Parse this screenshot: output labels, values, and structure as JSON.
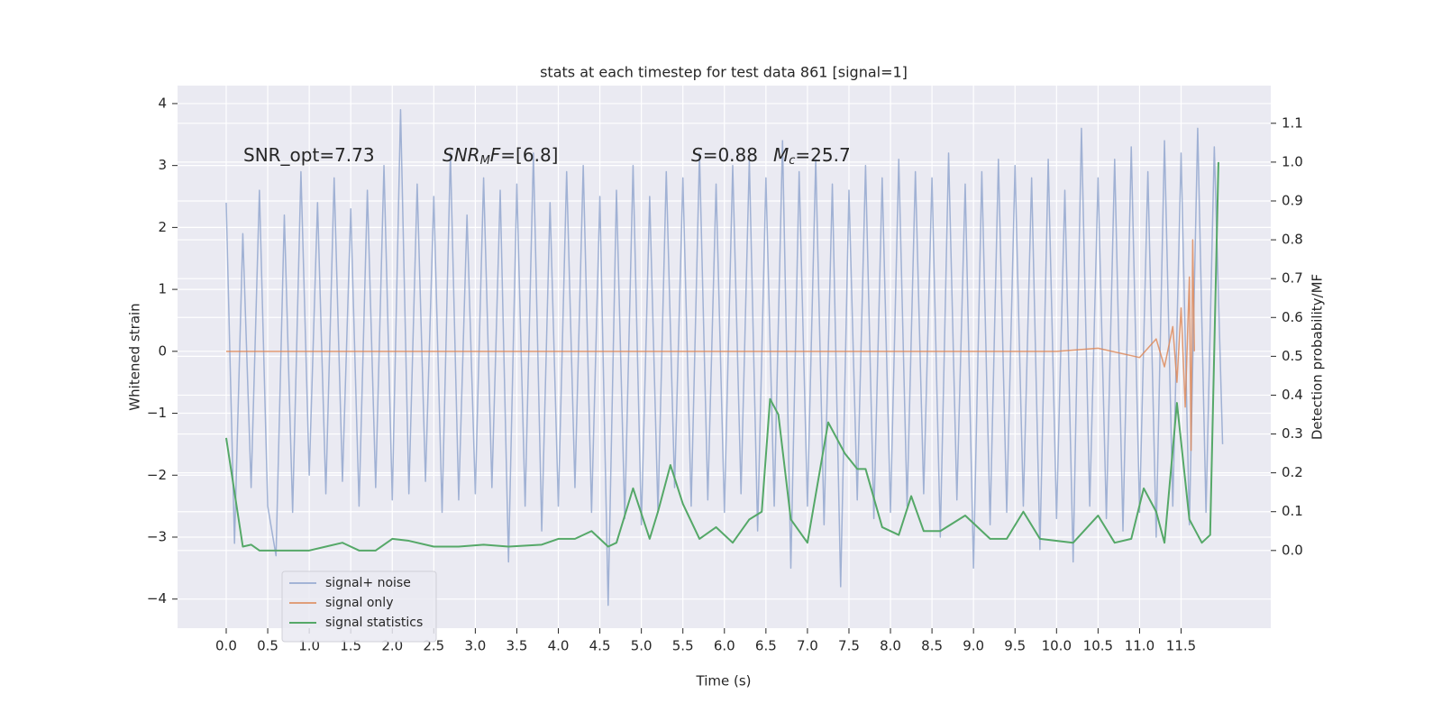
{
  "chart_data": {
    "type": "line",
    "title": "stats at each timestep for test data 861 [signal=1]",
    "xlabel": "Time (s)",
    "ylabel": "Whitened strain",
    "y2label": "Detection probability/MF",
    "xlim": [
      -0.586,
      12.58
    ],
    "ylim": [
      -4.47,
      4.29
    ],
    "y2lim": [
      -0.2,
      1.197
    ],
    "xticks": [
      {
        "value": 0,
        "label": "0.0"
      },
      0.5,
      {
        "value": 1,
        "label": "1.0"
      },
      1.5,
      {
        "value": 2,
        "label": "2.0"
      },
      2.5,
      {
        "value": 3,
        "label": "3.0"
      },
      3.5,
      {
        "value": 4,
        "label": "4.0"
      },
      4.5,
      {
        "value": 5,
        "label": "5.0"
      },
      5.5,
      {
        "value": 6,
        "label": "6.0"
      },
      6.5,
      {
        "value": 7,
        "label": "7.0"
      },
      7.5,
      {
        "value": 8,
        "label": "8.0"
      },
      8.5,
      {
        "value": 9,
        "label": "9.0"
      },
      9.5,
      {
        "value": 10,
        "label": "10.0"
      },
      10.5,
      {
        "value": 11,
        "label": "11.0"
      },
      11.5
    ],
    "yticks": [
      {
        "value": -4,
        "label": "−4"
      },
      {
        "value": -3,
        "label": "−3"
      },
      {
        "value": -2,
        "label": "−2"
      },
      {
        "value": -1,
        "label": "−1"
      },
      0,
      1,
      2,
      3,
      4
    ],
    "y2ticks": [
      {
        "value": 0,
        "label": "0.0"
      },
      0.1,
      0.2,
      0.3,
      0.4,
      0.5,
      0.6,
      0.7,
      0.8,
      0.9,
      {
        "value": 1,
        "label": "1.0"
      },
      1.1
    ],
    "grid": true,
    "legend": "lower left",
    "annotations": [
      {
        "parts": [
          {
            "text": "SNR_opt=7.73"
          }
        ]
      },
      {
        "parts": [
          {
            "text": "SNR",
            "italic": true
          },
          {
            "text": "M",
            "italic": true,
            "sub": true
          },
          {
            "text": "F",
            "italic": true
          },
          {
            "text": "=[6.8]"
          }
        ]
      },
      {
        "parts": [
          {
            "text": "S",
            "italic": true
          },
          {
            "text": "=0.88"
          }
        ]
      },
      {
        "parts": [
          {
            "text": "M",
            "italic": true
          },
          {
            "text": "c",
            "italic": true,
            "sub": true
          },
          {
            "text": "=25.7"
          }
        ]
      }
    ],
    "series": [
      {
        "name": "signal+ noise",
        "color": "#8da2cc",
        "x": [
          0,
          0.1,
          0.2,
          0.3,
          0.4,
          0.5,
          0.6,
          0.7,
          0.8,
          0.9,
          1,
          1.1,
          1.2,
          1.3,
          1.4,
          1.5,
          1.6,
          1.7,
          1.8,
          1.9,
          2,
          2.1,
          2.2,
          2.3,
          2.4,
          2.5,
          2.6,
          2.7,
          2.8,
          2.9,
          3,
          3.1,
          3.2,
          3.3,
          3.4,
          3.5,
          3.6,
          3.7,
          3.8,
          3.9,
          4,
          4.1,
          4.2,
          4.3,
          4.4,
          4.5,
          4.6,
          4.7,
          4.8,
          4.9,
          5,
          5.1,
          5.2,
          5.3,
          5.4,
          5.5,
          5.6,
          5.7,
          5.8,
          5.9,
          6,
          6.1,
          6.2,
          6.3,
          6.4,
          6.5,
          6.6,
          6.7,
          6.8,
          6.9,
          7,
          7.1,
          7.2,
          7.3,
          7.4,
          7.5,
          7.6,
          7.7,
          7.8,
          7.9,
          8,
          8.1,
          8.2,
          8.3,
          8.4,
          8.5,
          8.6,
          8.7,
          8.8,
          8.9,
          9,
          9.1,
          9.2,
          9.3,
          9.4,
          9.5,
          9.6,
          9.7,
          9.8,
          9.9,
          10,
          10.1,
          10.2,
          10.3,
          10.4,
          10.5,
          10.6,
          10.7,
          10.8,
          10.9,
          11,
          11.1,
          11.2,
          11.3,
          11.4,
          11.5,
          11.6,
          11.7,
          11.8,
          11.9,
          12
        ],
        "values": [
          2.4,
          -3.1,
          1.9,
          -2.2,
          2.6,
          -2.5,
          -3.3,
          2.2,
          -2.6,
          2.9,
          -2.0,
          2.4,
          -2.3,
          2.8,
          -2.1,
          2.3,
          -2.5,
          2.6,
          -2.2,
          3.0,
          -2.4,
          3.9,
          -2.3,
          2.7,
          -2.1,
          2.5,
          -2.6,
          3.2,
          -2.4,
          2.2,
          -2.3,
          2.8,
          -2.2,
          2.6,
          -3.4,
          2.7,
          -2.5,
          3.2,
          -2.9,
          2.4,
          -2.5,
          2.9,
          -2.2,
          3.0,
          -2.6,
          2.5,
          -4.1,
          2.6,
          -2.7,
          3.0,
          -2.8,
          2.5,
          -2.6,
          2.9,
          -2.2,
          2.8,
          -2.5,
          3.2,
          -2.4,
          2.7,
          -2.6,
          3.0,
          -2.3,
          3.1,
          -2.9,
          2.8,
          -2.5,
          3.4,
          -3.5,
          2.9,
          -2.5,
          3.1,
          -2.8,
          2.7,
          -3.8,
          2.6,
          -2.4,
          3.0,
          -2.7,
          2.8,
          -2.6,
          3.1,
          -2.5,
          2.9,
          -2.3,
          2.8,
          -3.0,
          3.2,
          -2.4,
          2.7,
          -3.5,
          2.9,
          -2.8,
          3.1,
          -2.6,
          3.0,
          -2.5,
          2.8,
          -3.2,
          3.1,
          -2.7,
          2.6,
          -3.4,
          3.6,
          -2.5,
          2.8,
          -2.7,
          3.1,
          -2.9,
          3.3,
          -2.6,
          2.9,
          -3.0,
          3.4,
          -2.5,
          3.2,
          -2.8,
          3.6,
          -2.6,
          3.3,
          -1.5
        ]
      },
      {
        "name": "signal only",
        "color": "#dd8452",
        "x": [
          0,
          10,
          10.5,
          11,
          11.2,
          11.3,
          11.4,
          11.45,
          11.5,
          11.55,
          11.6,
          11.62,
          11.64,
          11.66
        ],
        "values": [
          0,
          0,
          0.05,
          -0.1,
          0.2,
          -0.25,
          0.4,
          -0.5,
          0.7,
          -0.9,
          1.2,
          -1.6,
          1.8,
          0
        ]
      },
      {
        "name": "signal statistics",
        "color": "#55a868",
        "axis": "y2",
        "x": [
          0,
          0.1,
          0.15,
          0.2,
          0.3,
          0.4,
          0.5,
          0.7,
          1.0,
          1.2,
          1.4,
          1.6,
          1.8,
          2.0,
          2.2,
          2.5,
          2.8,
          3.1,
          3.4,
          3.8,
          4.0,
          4.2,
          4.4,
          4.6,
          4.7,
          4.9,
          5.1,
          5.2,
          5.35,
          5.5,
          5.7,
          5.9,
          6.1,
          6.3,
          6.45,
          6.55,
          6.65,
          6.8,
          7.0,
          7.25,
          7.45,
          7.6,
          7.7,
          7.9,
          8.1,
          8.25,
          8.4,
          8.6,
          8.9,
          9.2,
          9.4,
          9.6,
          9.8,
          10.2,
          10.5,
          10.7,
          10.9,
          11.05,
          11.2,
          11.3,
          11.45,
          11.6,
          11.75,
          11.85,
          11.95
        ],
        "values": [
          0.29,
          0.15,
          0.08,
          0.01,
          0.015,
          0.0,
          0.0,
          0.0,
          0.0,
          0.01,
          0.02,
          0.0,
          0.0,
          0.03,
          0.025,
          0.01,
          0.01,
          0.015,
          0.01,
          0.015,
          0.03,
          0.03,
          0.05,
          0.01,
          0.02,
          0.16,
          0.03,
          0.1,
          0.22,
          0.12,
          0.03,
          0.06,
          0.02,
          0.08,
          0.1,
          0.39,
          0.35,
          0.08,
          0.02,
          0.33,
          0.25,
          0.21,
          0.21,
          0.06,
          0.04,
          0.14,
          0.05,
          0.05,
          0.09,
          0.03,
          0.03,
          0.1,
          0.03,
          0.02,
          0.09,
          0.02,
          0.03,
          0.16,
          0.1,
          0.02,
          0.38,
          0.08,
          0.02,
          0.04,
          1.0
        ]
      }
    ]
  }
}
